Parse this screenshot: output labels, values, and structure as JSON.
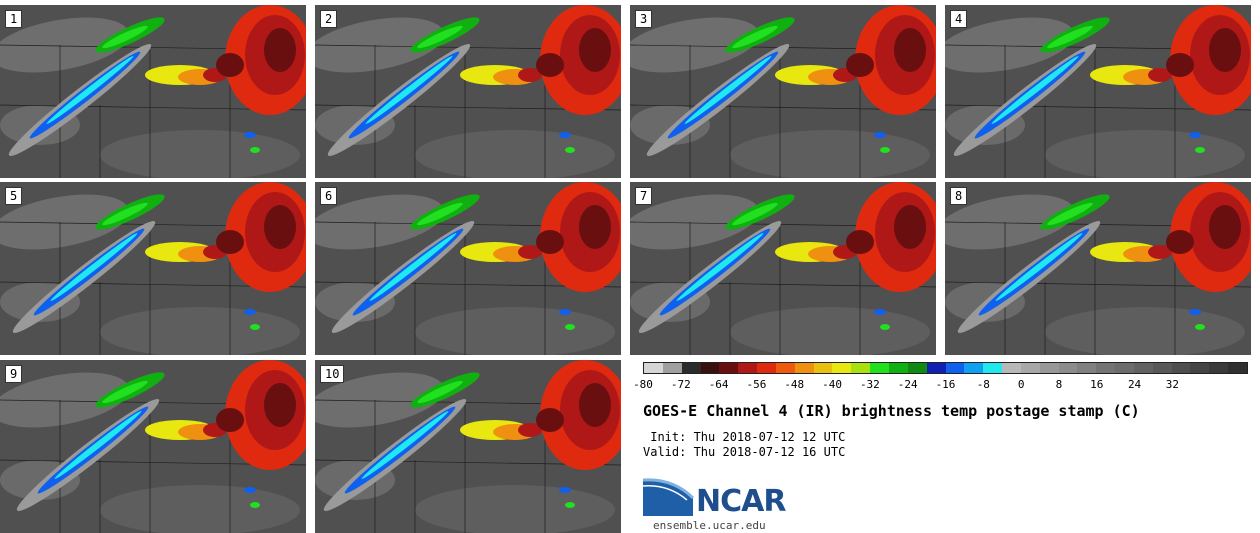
{
  "panels": [
    {
      "label": "1"
    },
    {
      "label": "2"
    },
    {
      "label": "3"
    },
    {
      "label": "4"
    },
    {
      "label": "5"
    },
    {
      "label": "6"
    },
    {
      "label": "7"
    },
    {
      "label": "8"
    },
    {
      "label": "9"
    },
    {
      "label": "10"
    }
  ],
  "colorbar": {
    "colors": [
      "#d6d6d6",
      "#a0a0a0",
      "#2b2b2b",
      "#3a1010",
      "#6a0f0f",
      "#b01818",
      "#e02a10",
      "#f05a10",
      "#f09010",
      "#e8c010",
      "#e8e810",
      "#a8e010",
      "#20e020",
      "#10b010",
      "#108a10",
      "#1020b0",
      "#1060f0",
      "#10a0f0",
      "#20e8f0",
      "#b8b8b8",
      "#a8a8a8",
      "#989898",
      "#8c8c8c",
      "#808080",
      "#747474",
      "#6c6c6c",
      "#626262",
      "#585858",
      "#4e4e4e",
      "#444444",
      "#3a3a3a",
      "#303030"
    ],
    "ticks": [
      "-80",
      "-72",
      "-64",
      "-56",
      "-48",
      "-40",
      "-32",
      "-24",
      "-16",
      "-8",
      "0",
      "8",
      "16",
      "24",
      "32"
    ]
  },
  "title": "GOES-E Channel 4 (IR) brightness temp postage stamp (C)",
  "init": " Init: Thu 2018-07-12 12 UTC",
  "valid": "Valid: Thu 2018-07-12 16 UTC",
  "logo_text": "NCAR",
  "site": "ensemble.ucar.edu"
}
